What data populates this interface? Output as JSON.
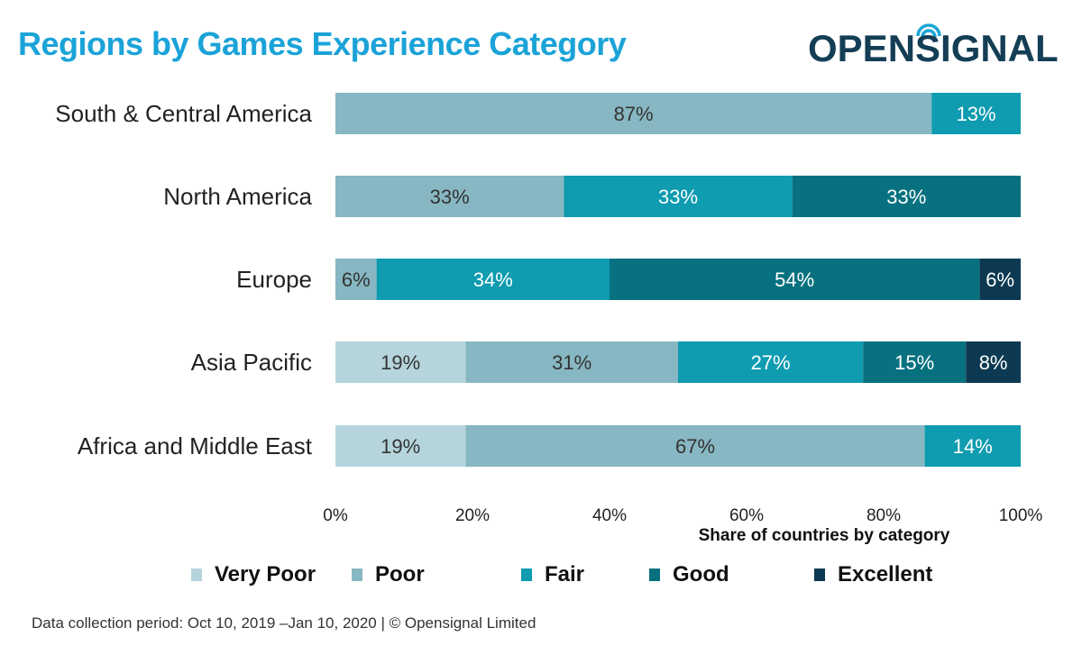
{
  "header": {
    "title": "Regions by Games Experience Category",
    "logo_text": "OPENSIGNAL"
  },
  "footer": {
    "note": "Data collection period: Oct 10, 2019 –Jan 10, 2020 | © Opensignal Limited"
  },
  "chart_data": {
    "type": "bar",
    "orientation": "horizontal",
    "stacked": true,
    "title": "Regions by Games Experience Category",
    "xlabel": "Share of countries by category",
    "ylabel": "",
    "xlim": [
      0,
      100
    ],
    "x_ticks": [
      "0%",
      "20%",
      "40%",
      "60%",
      "80%",
      "100%"
    ],
    "legend_position": "bottom",
    "categories": [
      "South & Central America",
      "North America",
      "Europe",
      "Asia Pacific",
      "Africa and Middle East"
    ],
    "series": [
      {
        "name": "Very Poor",
        "color": "#b5d4dc",
        "values": [
          0,
          0,
          0,
          19,
          19
        ]
      },
      {
        "name": "Poor",
        "color": "#87b7c2",
        "values": [
          87,
          33,
          6,
          31,
          67
        ]
      },
      {
        "name": "Fair",
        "color": "#0f9bb0",
        "values": [
          13,
          33,
          34,
          27,
          14
        ]
      },
      {
        "name": "Good",
        "color": "#08717f",
        "values": [
          0,
          33,
          54,
          15,
          0
        ]
      },
      {
        "name": "Excellent",
        "color": "#0d3a52",
        "values": [
          0,
          0,
          6,
          8,
          0
        ]
      }
    ]
  }
}
